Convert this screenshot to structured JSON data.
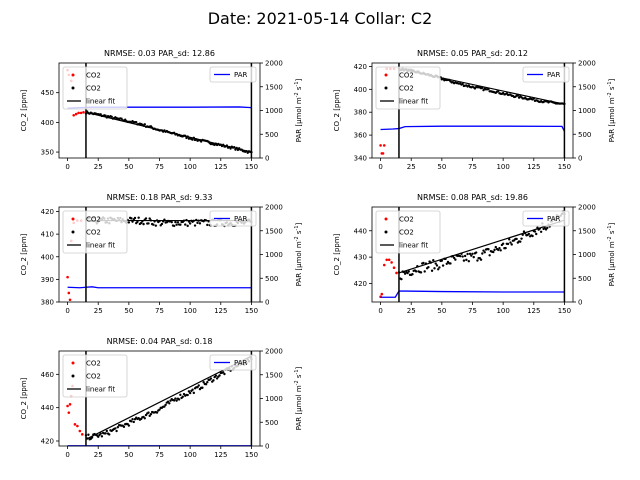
{
  "suptitle": "Date: 2021-05-14 Collar: C2",
  "chart_data": [
    {
      "type": "scatter",
      "title": "NRMSE: 0.03 PAR_sd: 12.86",
      "ylabel": "CO$_2$ [ppm]",
      "y2label": "PAR [$\\mu$mol m$^{-2}$ s$^{-1}$]",
      "xlim": [
        -7,
        157
      ],
      "ylim": [
        340,
        500
      ],
      "y2lim": [
        0,
        2000
      ],
      "xticks": [
        0,
        25,
        50,
        75,
        100,
        125,
        150
      ],
      "yticks": [
        350,
        400,
        450
      ],
      "y2ticks": [
        0,
        500,
        1000,
        1500,
        2000
      ],
      "vlines": [
        15,
        150
      ],
      "legend": [
        "CO2",
        "CO2",
        "linear fit"
      ],
      "legend2": [
        "PAR"
      ],
      "excluded": [
        [
          0,
          488
        ],
        [
          1,
          480
        ],
        [
          3,
          470
        ],
        [
          5,
          412
        ],
        [
          7,
          414
        ],
        [
          9,
          416
        ],
        [
          11,
          416
        ],
        [
          13,
          417
        ]
      ],
      "fit": [
        [
          15,
          417
        ],
        [
          150,
          350
        ]
      ],
      "included": [
        [
          15,
          417
        ],
        [
          30,
          411
        ],
        [
          45,
          404
        ],
        [
          60,
          397
        ],
        [
          75,
          387
        ],
        [
          90,
          379
        ],
        [
          105,
          371
        ],
        [
          120,
          364
        ],
        [
          135,
          357
        ],
        [
          150,
          349
        ]
      ],
      "noise": 2,
      "par": [
        [
          0,
          1050
        ],
        [
          10,
          1060
        ],
        [
          20,
          1070
        ],
        [
          50,
          1070
        ],
        [
          100,
          1070
        ],
        [
          140,
          1075
        ],
        [
          150,
          1060
        ]
      ]
    },
    {
      "type": "scatter",
      "title": "NRMSE: 0.05 PAR_sd: 20.12",
      "ylabel": "CO$_2$ [ppm]",
      "y2label": "PAR [$\\mu$mol m$^{-2}$ s$^{-1}$]",
      "xlim": [
        -7,
        157
      ],
      "ylim": [
        340,
        423
      ],
      "y2lim": [
        0,
        2000
      ],
      "xticks": [
        0,
        25,
        50,
        75,
        100,
        125,
        150
      ],
      "yticks": [
        340,
        360,
        380,
        400,
        420
      ],
      "y2ticks": [
        0,
        500,
        1000,
        1500,
        2000
      ],
      "vlines": [
        15,
        150
      ],
      "legend": [
        "CO2",
        "CO2",
        "linear fit"
      ],
      "legend2": [
        "PAR"
      ],
      "excluded": [
        [
          0,
          351
        ],
        [
          1,
          344
        ],
        [
          2,
          344
        ],
        [
          3,
          351
        ],
        [
          5,
          418
        ],
        [
          8,
          418
        ],
        [
          11,
          418
        ]
      ],
      "fit": [
        [
          15,
          418
        ],
        [
          150,
          387
        ]
      ],
      "included": [
        [
          15,
          418
        ],
        [
          30,
          415
        ],
        [
          45,
          411
        ],
        [
          60,
          406
        ],
        [
          75,
          402
        ],
        [
          90,
          399
        ],
        [
          105,
          395
        ],
        [
          120,
          392
        ],
        [
          135,
          389
        ],
        [
          150,
          387
        ]
      ],
      "noise": 1,
      "par": [
        [
          0,
          600
        ],
        [
          10,
          610
        ],
        [
          15,
          620
        ],
        [
          20,
          660
        ],
        [
          50,
          670
        ],
        [
          100,
          670
        ],
        [
          148,
          665
        ],
        [
          150,
          560
        ]
      ]
    },
    {
      "type": "scatter",
      "title": "NRMSE: 0.18 PAR_sd: 9.33",
      "ylabel": "CO$_2$ [ppm]",
      "y2label": "PAR [$\\mu$mol m$^{-2}$ s$^{-1}$]",
      "xlim": [
        -7,
        157
      ],
      "ylim": [
        380,
        422
      ],
      "y2lim": [
        0,
        2000
      ],
      "xticks": [
        0,
        25,
        50,
        75,
        100,
        125,
        150
      ],
      "yticks": [
        380,
        390,
        400,
        410,
        420
      ],
      "y2ticks": [
        0,
        500,
        1000,
        1500,
        2000
      ],
      "vlines": [
        15,
        150
      ],
      "legend": [
        "CO2",
        "CO2",
        "linear fit"
      ],
      "legend2": [
        "PAR"
      ],
      "excluded": [
        [
          0,
          391
        ],
        [
          1,
          384
        ],
        [
          2,
          381
        ],
        [
          3,
          407
        ],
        [
          5,
          415
        ],
        [
          8,
          416
        ],
        [
          11,
          416
        ]
      ],
      "fit": [
        [
          15,
          416
        ],
        [
          150,
          416
        ]
      ],
      "included": [
        [
          15,
          416
        ],
        [
          30,
          416
        ],
        [
          45,
          416
        ],
        [
          60,
          416
        ],
        [
          75,
          415
        ],
        [
          90,
          415
        ],
        [
          105,
          415
        ],
        [
          120,
          415
        ],
        [
          135,
          415
        ],
        [
          150,
          415
        ]
      ],
      "noise": 1.5,
      "par": [
        [
          0,
          310
        ],
        [
          10,
          300
        ],
        [
          15,
          310
        ],
        [
          20,
          320
        ],
        [
          25,
          300
        ],
        [
          40,
          300
        ],
        [
          100,
          300
        ],
        [
          150,
          300
        ]
      ]
    },
    {
      "type": "scatter",
      "title": "NRMSE: 0.08 PAR_sd: 19.86",
      "ylabel": "CO$_2$ [ppm]",
      "y2label": "PAR [$\\mu$mol m$^{-2}$ s$^{-1}$]",
      "xlim": [
        -7,
        157
      ],
      "ylim": [
        413,
        449
      ],
      "y2lim": [
        0,
        2000
      ],
      "xticks": [
        0,
        25,
        50,
        75,
        100,
        125,
        150
      ],
      "yticks": [
        420,
        430,
        440
      ],
      "y2ticks": [
        0,
        500,
        1000,
        1500,
        2000
      ],
      "vlines": [
        15,
        150
      ],
      "legend": [
        "CO2",
        "CO2",
        "linear fit"
      ],
      "legend2": [
        "PAR"
      ],
      "excluded": [
        [
          0,
          415
        ],
        [
          1,
          416
        ],
        [
          3,
          427
        ],
        [
          5,
          429
        ],
        [
          7,
          429
        ],
        [
          9,
          428
        ],
        [
          11,
          426
        ],
        [
          13,
          424
        ]
      ],
      "fit": [
        [
          15,
          424
        ],
        [
          150,
          444
        ]
      ],
      "included": [
        [
          15,
          423
        ],
        [
          30,
          426
        ],
        [
          45,
          427
        ],
        [
          60,
          429
        ],
        [
          75,
          430
        ],
        [
          90,
          432
        ],
        [
          105,
          435
        ],
        [
          120,
          439
        ],
        [
          135,
          442
        ],
        [
          150,
          446
        ]
      ],
      "noise": 2,
      "par": [
        [
          0,
          100
        ],
        [
          12,
          100
        ],
        [
          15,
          230
        ],
        [
          20,
          230
        ],
        [
          50,
          220
        ],
        [
          100,
          210
        ],
        [
          150,
          210
        ]
      ]
    },
    {
      "type": "scatter",
      "title": "NRMSE: 0.04 PAR_sd: 0.18",
      "ylabel": "CO$_2$ [ppm]",
      "y2label": "PAR [$\\mu$mol m$^{-2}$ s$^{-1}$]",
      "xlim": [
        -7,
        157
      ],
      "ylim": [
        417,
        474
      ],
      "y2lim": [
        0,
        2000
      ],
      "xticks": [
        0,
        25,
        50,
        75,
        100,
        125,
        150
      ],
      "yticks": [
        420,
        440,
        460
      ],
      "y2ticks": [
        0,
        500,
        1000,
        1500,
        2000
      ],
      "vlines": [
        15,
        150
      ],
      "legend": [
        "CO2",
        "CO2",
        "linear fit"
      ],
      "legend2": [
        "PAR"
      ],
      "excluded": [
        [
          0,
          441
        ],
        [
          1,
          437
        ],
        [
          2,
          442
        ],
        [
          3,
          447
        ],
        [
          4,
          453
        ],
        [
          6,
          430
        ],
        [
          8,
          429
        ],
        [
          10,
          426
        ],
        [
          12,
          424
        ]
      ],
      "fit": [
        [
          15,
          421
        ],
        [
          150,
          471
        ]
      ],
      "included": [
        [
          15,
          422
        ],
        [
          30,
          424
        ],
        [
          45,
          429
        ],
        [
          60,
          434
        ],
        [
          75,
          439
        ],
        [
          90,
          446
        ],
        [
          105,
          451
        ],
        [
          120,
          458
        ],
        [
          135,
          464
        ],
        [
          150,
          469
        ]
      ],
      "noise": 1.5,
      "par": [
        [
          0,
          5
        ],
        [
          150,
          5
        ]
      ]
    }
  ]
}
